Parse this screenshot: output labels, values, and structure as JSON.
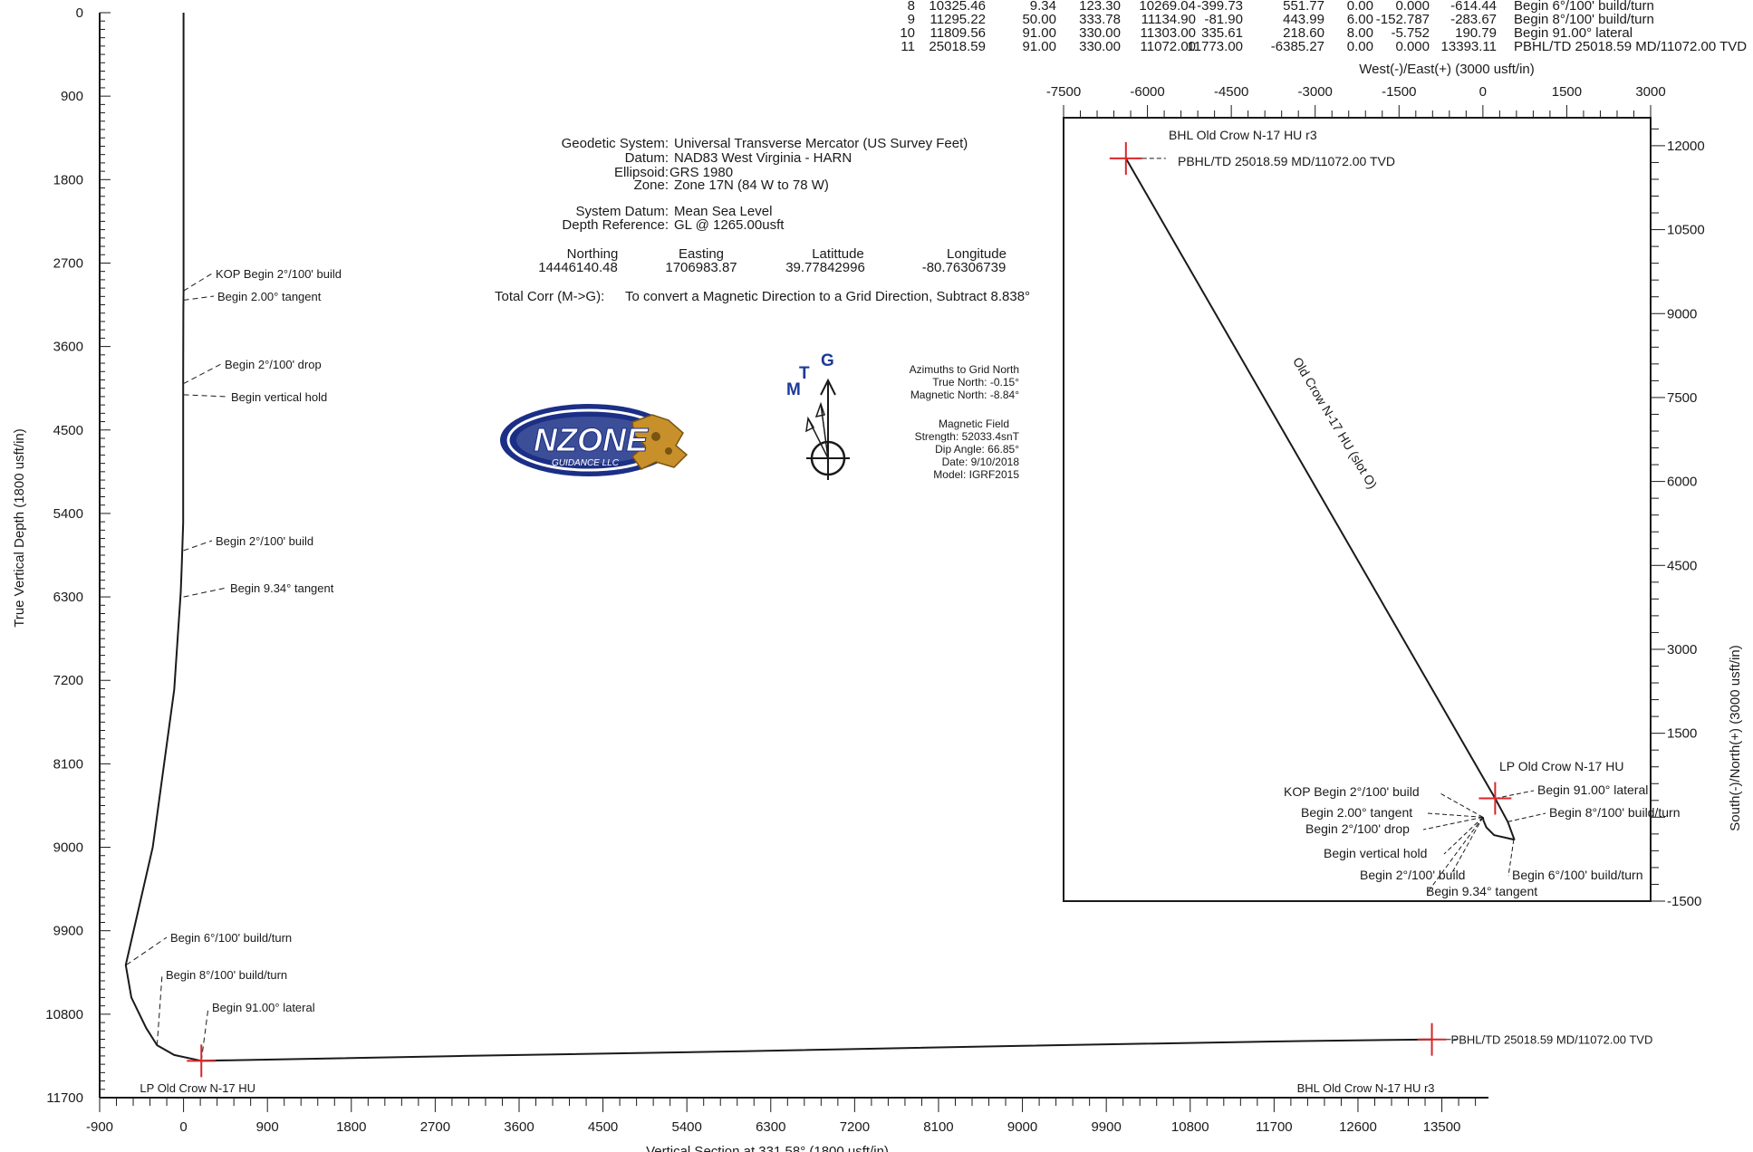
{
  "survey_table": {
    "rows": [
      {
        "sec": "8",
        "md": "10325.46",
        "inc": "9.34",
        "azi": "123.30",
        "tvd": "10269.04",
        "ns": "-399.73",
        "ew": "551.77",
        "dleg": "0.00",
        "tface": "0.000",
        "vsect": "-614.44",
        "annotation": "Begin 6°/100' build/turn"
      },
      {
        "sec": "9",
        "md": "11295.22",
        "inc": "50.00",
        "azi": "333.78",
        "tvd": "11134.90",
        "ns": "-81.90",
        "ew": "443.99",
        "dleg": "6.00",
        "tface": "-152.787",
        "vsect": "-283.67",
        "annotation": "Begin 8°/100' build/turn"
      },
      {
        "sec": "10",
        "md": "11809.56",
        "inc": "91.00",
        "azi": "330.00",
        "tvd": "11303.00",
        "ns": "335.61",
        "ew": "218.60",
        "dleg": "8.00",
        "tface": "-5.752",
        "vsect": "190.79",
        "annotation": "Begin 91.00° lateral"
      },
      {
        "sec": "11",
        "md": "25018.59",
        "inc": "91.00",
        "azi": "330.00",
        "tvd": "11072.00",
        "ns": "11773.00",
        "ew": "-6385.27",
        "dleg": "0.00",
        "tface": "0.000",
        "vsect": "13393.11",
        "annotation": "PBHL/TD 25018.59 MD/11072.00 TVD"
      }
    ]
  },
  "geodetic": {
    "labels": {
      "system": "Geodetic System:",
      "datum": "Datum:",
      "ellipsoid": "Ellipsoid:",
      "zone": "Zone:",
      "system_datum": "System Datum:",
      "depth_reference": "Depth Reference:"
    },
    "values": {
      "system": "Universal Transverse Mercator (US Survey Feet)",
      "datum": "NAD83 West Virginia - HARN",
      "ellipsoid": "GRS 1980",
      "zone": "Zone 17N (84 W to 78 W)",
      "system_datum": "Mean Sea Level",
      "depth_reference": "GL @ 1265.00usft"
    },
    "coord_headers": {
      "northing": "Northing",
      "easting": "Easting",
      "latitude": "Latittude",
      "longitude": "Longitude"
    },
    "coord_values": {
      "northing": "14446140.48",
      "easting": "1706983.87",
      "latitude": "39.77842996",
      "longitude": "-80.76306739"
    },
    "total_corr_label": "Total Corr (M->G):",
    "total_corr_text": "To convert a Magnetic Direction to a Grid Direction, Subtract 8.838°"
  },
  "north_arrow": {
    "labels": {
      "magnetic": "M",
      "true": "T",
      "grid": "G"
    },
    "azimuths_title": "Azimuths to Grid North",
    "true_north": "True North: -0.15°",
    "magnetic_north": "Magnetic North: -8.84°",
    "field_title": "Magnetic Field",
    "strength": "Strength: 52033.4snT",
    "dip": "Dip Angle: 66.85°",
    "date": "Date: 9/10/2018",
    "model": "Model: IGRF2015"
  },
  "logo": {
    "text": "NZONE",
    "subtext": "GUIDANCE LLC"
  },
  "colors": {
    "line": "#1a1a1a",
    "target_marker": "#d8262b",
    "logo_blue": "#1c2f86",
    "logo_gold": "#c8902a"
  },
  "chart_data": [
    {
      "type": "line",
      "name_printed": "",
      "ylabel": "True Vertical Depth (1800 usft/in)",
      "xlabel": "Vertical Section at 331.58° (1800 usft/in)",
      "xlim": [
        -900,
        14000
      ],
      "ylim": [
        11700,
        0
      ],
      "x_ticks": [
        -900,
        0,
        900,
        1800,
        2700,
        3600,
        4500,
        5400,
        6300,
        7200,
        8100,
        9000,
        9900,
        10800,
        11700,
        12600,
        13500
      ],
      "y_ticks": [
        0,
        900,
        1800,
        2700,
        3600,
        4500,
        5400,
        6300,
        7200,
        8100,
        9000,
        9900,
        10800,
        11700
      ],
      "well_path": [
        [
          0,
          0
        ],
        [
          0,
          3000
        ],
        [
          -2,
          3200
        ],
        [
          -4,
          3900
        ],
        [
          -4,
          5500
        ],
        [
          -20,
          6000
        ],
        [
          -30,
          6250
        ],
        [
          -100,
          7300
        ],
        [
          -330,
          9000
        ],
        [
          -620,
          10269
        ],
        [
          -560,
          10620
        ],
        [
          -400,
          10950
        ],
        [
          -284,
          11135
        ],
        [
          -100,
          11240
        ],
        [
          191,
          11303
        ],
        [
          3000,
          11250
        ],
        [
          6000,
          11200
        ],
        [
          9000,
          11140
        ],
        [
          12000,
          11090
        ],
        [
          13393,
          11072
        ]
      ],
      "annotations": [
        {
          "label": "KOP Begin 2°/100' build",
          "x": 0,
          "y": 3000
        },
        {
          "label": "Begin 2.00° tangent",
          "x": 0,
          "y": 3100
        },
        {
          "label": "Begin 2°/100' drop",
          "x": 0,
          "y": 4000
        },
        {
          "label": "Begin vertical hold",
          "x": 0,
          "y": 4120
        },
        {
          "label": "Begin 2°/100' build",
          "x": 0,
          "y": 5800
        },
        {
          "label": "Begin 9.34° tangent",
          "x": 0,
          "y": 6300
        },
        {
          "label": "Begin 6°/100' build/turn",
          "x": -614,
          "y": 10269
        },
        {
          "label": "Begin 8°/100' build/turn",
          "x": -284,
          "y": 11135
        },
        {
          "label": "Begin 91.00° lateral",
          "x": 191,
          "y": 11303
        }
      ],
      "targets": [
        {
          "label": "LP Old Crow N-17 HU",
          "x": 191,
          "y": 11303
        },
        {
          "label": "PBHL/TD 25018.59 MD/11072.00 TVD",
          "x": 13393,
          "y": 11072
        },
        {
          "label": "BHL Old Crow N-17 HU r3",
          "x": 13393,
          "y": 11072
        }
      ]
    },
    {
      "type": "line",
      "name_printed": "",
      "xlabel": "West(-)/East(+) (3000 usft/in)",
      "ylabel": "South(-)/North(+) (3000 usft/in)",
      "xlim": [
        -7500,
        3000
      ],
      "ylim": [
        -1500,
        12500
      ],
      "x_ticks": [
        -7500,
        -6000,
        -4500,
        -3000,
        -1500,
        0,
        1500,
        3000
      ],
      "y_ticks": [
        -1500,
        1500,
        3000,
        4500,
        6000,
        7500,
        9000,
        10500,
        12000
      ],
      "well_label": "Old Crow N-17 HU (slot O)",
      "well_path": [
        [
          0,
          0
        ],
        [
          10,
          -60
        ],
        [
          60,
          -180
        ],
        [
          200,
          -320
        ],
        [
          552,
          -400
        ],
        [
          560,
          -395
        ],
        [
          444,
          -82
        ],
        [
          219,
          336
        ],
        [
          -6385,
          11773
        ]
      ],
      "annotations": [
        {
          "label": "KOP Begin 2°/100' build",
          "x": 0,
          "y": 0
        },
        {
          "label": "Begin 2.00° tangent",
          "x": 0,
          "y": -10
        },
        {
          "label": "Begin 2°/100' drop",
          "x": 0,
          "y": -20
        },
        {
          "label": "Begin vertical hold",
          "x": 0,
          "y": -30
        },
        {
          "label": "Begin 2°/100' build",
          "x": 0,
          "y": -40
        },
        {
          "label": "Begin 9.34° tangent",
          "x": 0,
          "y": -50
        },
        {
          "label": "Begin 6°/100' build/turn",
          "x": 552,
          "y": -400
        },
        {
          "label": "Begin 8°/100' build/turn",
          "x": 444,
          "y": -82
        },
        {
          "label": "Begin 91.00° lateral",
          "x": 219,
          "y": 336
        }
      ],
      "targets": [
        {
          "label": "LP Old Crow N-17 HU",
          "x": 219,
          "y": 336
        },
        {
          "label": "PBHL/TD 25018.59 MD/11072.00 TVD",
          "x": -6385,
          "y": 11773
        },
        {
          "label": "BHL Old Crow N-17 HU r3",
          "x": -6385,
          "y": 11773
        }
      ]
    }
  ]
}
